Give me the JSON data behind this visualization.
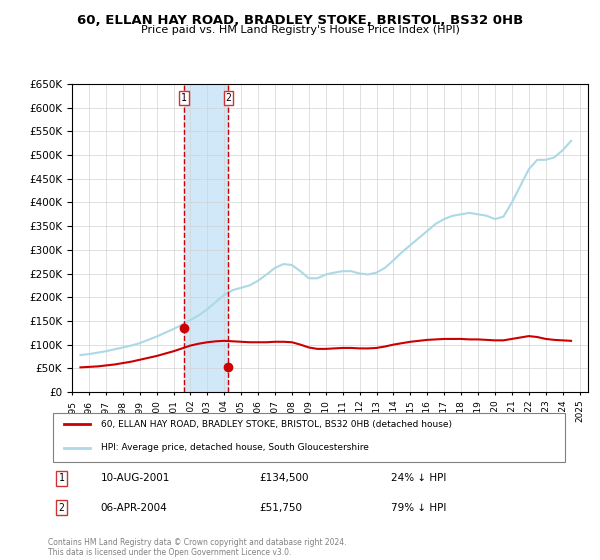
{
  "title": "60, ELLAN HAY ROAD, BRADLEY STOKE, BRISTOL, BS32 0HB",
  "subtitle": "Price paid vs. HM Land Registry's House Price Index (HPI)",
  "legend_line1": "60, ELLAN HAY ROAD, BRADLEY STOKE, BRISTOL, BS32 0HB (detached house)",
  "legend_line2": "HPI: Average price, detached house, South Gloucestershire",
  "footer": "Contains HM Land Registry data © Crown copyright and database right 2024.\nThis data is licensed under the Open Government Licence v3.0.",
  "transactions": [
    {
      "label": "1",
      "date": "10-AUG-2001",
      "price": 134500,
      "hpi_pct": "24% ↓ HPI",
      "year": 2001.6
    },
    {
      "label": "2",
      "date": "06-APR-2004",
      "price": 51750,
      "hpi_pct": "79% ↓ HPI",
      "year": 2004.25
    }
  ],
  "hpi_color": "#add8e6",
  "price_color": "#cc0000",
  "shade_color": "#d0e8f8",
  "ylim": [
    0,
    650000
  ],
  "yticks": [
    0,
    50000,
    100000,
    150000,
    200000,
    250000,
    300000,
    350000,
    400000,
    450000,
    500000,
    550000,
    600000,
    650000
  ],
  "hpi_data": {
    "years": [
      1995.5,
      1996.0,
      1996.5,
      1997.0,
      1997.5,
      1998.0,
      1998.5,
      1999.0,
      1999.5,
      2000.0,
      2000.5,
      2001.0,
      2001.5,
      2002.0,
      2002.5,
      2003.0,
      2003.5,
      2004.0,
      2004.5,
      2005.0,
      2005.5,
      2006.0,
      2006.5,
      2007.0,
      2007.5,
      2008.0,
      2008.5,
      2009.0,
      2009.5,
      2010.0,
      2010.5,
      2011.0,
      2011.5,
      2012.0,
      2012.5,
      2013.0,
      2013.5,
      2014.0,
      2014.5,
      2015.0,
      2015.5,
      2016.0,
      2016.5,
      2017.0,
      2017.5,
      2018.0,
      2018.5,
      2019.0,
      2019.5,
      2020.0,
      2020.5,
      2021.0,
      2021.5,
      2022.0,
      2022.5,
      2023.0,
      2023.5,
      2024.0,
      2024.5
    ],
    "values": [
      78000,
      80000,
      83000,
      86000,
      90000,
      94000,
      98000,
      103000,
      110000,
      117000,
      125000,
      133000,
      142000,
      152000,
      162000,
      175000,
      190000,
      205000,
      215000,
      220000,
      225000,
      235000,
      248000,
      262000,
      270000,
      268000,
      255000,
      240000,
      240000,
      248000,
      252000,
      255000,
      255000,
      250000,
      248000,
      252000,
      262000,
      278000,
      295000,
      310000,
      325000,
      340000,
      355000,
      365000,
      372000,
      375000,
      378000,
      375000,
      372000,
      365000,
      370000,
      400000,
      435000,
      470000,
      490000,
      490000,
      495000,
      510000,
      530000
    ]
  },
  "price_data": {
    "years": [
      1995.5,
      1996.0,
      1996.5,
      1997.0,
      1997.5,
      1998.0,
      1998.5,
      1999.0,
      1999.5,
      2000.0,
      2000.5,
      2001.0,
      2001.5,
      2002.0,
      2002.5,
      2003.0,
      2003.5,
      2004.0,
      2004.5,
      2005.0,
      2005.5,
      2006.0,
      2006.5,
      2007.0,
      2007.5,
      2008.0,
      2008.5,
      2009.0,
      2009.5,
      2010.0,
      2010.5,
      2011.0,
      2011.5,
      2012.0,
      2012.5,
      2013.0,
      2013.5,
      2014.0,
      2014.5,
      2015.0,
      2015.5,
      2016.0,
      2016.5,
      2017.0,
      2017.5,
      2018.0,
      2018.5,
      2019.0,
      2019.5,
      2020.0,
      2020.5,
      2021.0,
      2021.5,
      2022.0,
      2022.5,
      2023.0,
      2023.5,
      2024.0,
      2024.5
    ],
    "values": [
      52000,
      53000,
      54000,
      56000,
      58000,
      61000,
      64000,
      68000,
      72000,
      76000,
      81000,
      86000,
      92000,
      98000,
      102000,
      105000,
      107000,
      108000,
      107000,
      106000,
      105000,
      105000,
      105000,
      106000,
      106000,
      105000,
      100000,
      94000,
      91000,
      91000,
      92000,
      93000,
      93000,
      92000,
      92000,
      93000,
      96000,
      100000,
      103000,
      106000,
      108000,
      110000,
      111000,
      112000,
      112000,
      112000,
      111000,
      111000,
      110000,
      109000,
      109000,
      112000,
      115000,
      118000,
      116000,
      112000,
      110000,
      109000,
      108000
    ]
  },
  "xmin": 1995,
  "xmax": 2025.5,
  "shade_xmin": 2001.6,
  "shade_xmax": 2004.25
}
